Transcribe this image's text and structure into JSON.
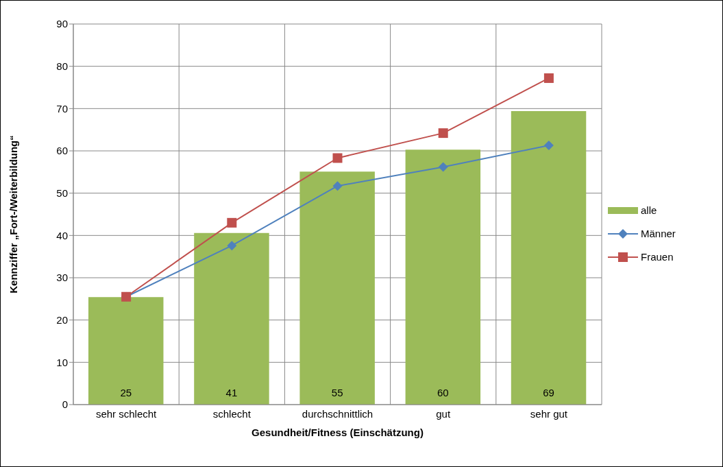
{
  "chart_data": {
    "type": "bar",
    "xlabel": "Gesundheit/Fitness (Einschätzung)",
    "ylabel": "Kennziffer „Fort-/Weiterbildung“",
    "categories": [
      "sehr schlecht",
      "schlecht",
      "durchschnittlich",
      "gut",
      "sehr gut"
    ],
    "series": [
      {
        "name": "alle",
        "color": "#9bbb59",
        "values": [
          25.4,
          40.6,
          55.1,
          60.3,
          69.4
        ],
        "value_labels": [
          "25",
          "41",
          "55",
          "60",
          "69"
        ]
      },
      {
        "name": "Männer",
        "type": "line",
        "color": "#4f81bd",
        "marker": "diamond",
        "values": [
          25.5,
          37.6,
          51.7,
          56.2,
          61.3
        ]
      },
      {
        "name": "Frauen",
        "type": "line",
        "color": "#c0504d",
        "marker": "square",
        "values": [
          25.5,
          43.0,
          58.3,
          64.2,
          77.2
        ]
      }
    ],
    "ylim": [
      0,
      90
    ],
    "yticks": [
      0,
      10,
      20,
      30,
      40,
      50,
      60,
      70,
      80,
      90
    ],
    "grid": true,
    "legend": "right"
  }
}
